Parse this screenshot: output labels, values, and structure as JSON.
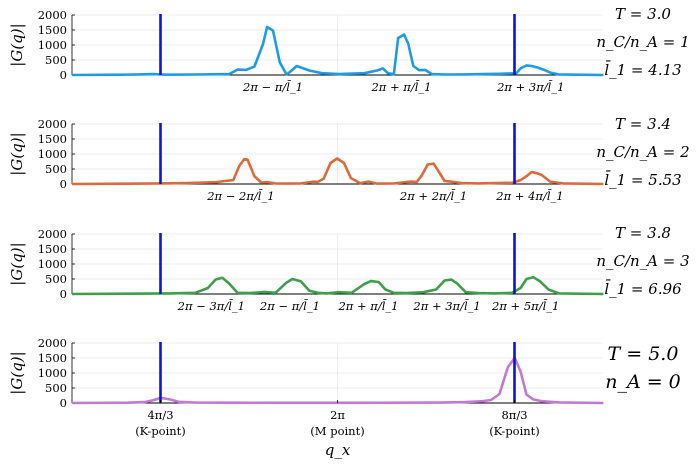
{
  "chart_data": {
    "type": "line",
    "x_axis": {
      "xlabel": "q_x",
      "tick_labels": [
        {
          "x": 4.18879,
          "line1": "4π/3",
          "line2": "(K-point)"
        },
        {
          "x": 6.28319,
          "line1": "2π",
          "line2": "(M point)"
        },
        {
          "x": 8.37758,
          "line1": "8π/3",
          "line2": "(K-point)"
        }
      ]
    },
    "k_points": [
      4.18879,
      8.37758
    ],
    "panels": [
      {
        "ylabel": "|G(q)|",
        "yticks": [
          "0",
          "500",
          "1000",
          "1500",
          "2000"
        ],
        "ylim": [
          0,
          2000
        ],
        "xlim": [
          3.14159,
          9.42478
        ],
        "color": "#1f9be6",
        "side_labels": [
          "T = 3.0",
          "n_C/n_A = 1",
          "l̄_1 = 4.13"
        ],
        "annotations": [
          {
            "x": 5.52,
            "text": "2π − π/l̄_1"
          },
          {
            "x": 7.04,
            "text": "2π + π/l̄_1"
          },
          {
            "x": 8.57,
            "text": "2π + 3π/l̄_1"
          }
        ],
        "series": [
          {
            "x": [
              3.14,
              3.75,
              3.95,
              4.1,
              4.25,
              4.6,
              5.0,
              5.1,
              5.2,
              5.3,
              5.4,
              5.45,
              5.52,
              5.6,
              5.68,
              5.72,
              5.8,
              5.95,
              6.1,
              6.3,
              6.6,
              6.75,
              6.82,
              6.88,
              6.95,
              7.0,
              7.07,
              7.12,
              7.18,
              7.25,
              7.32,
              7.4,
              7.55,
              7.8,
              8.0,
              8.2,
              8.4,
              8.45,
              8.52,
              8.58,
              8.65,
              8.72,
              8.8,
              8.9,
              9.1,
              9.43
            ],
            "y": [
              0,
              10,
              20,
              30,
              10,
              15,
              30,
              180,
              170,
              280,
              1020,
              1600,
              1480,
              420,
              20,
              100,
              300,
              150,
              60,
              30,
              60,
              150,
              220,
              60,
              30,
              1230,
              1350,
              1050,
              300,
              160,
              170,
              30,
              15,
              20,
              30,
              40,
              60,
              220,
              320,
              300,
              250,
              180,
              80,
              20,
              10,
              0
            ]
          }
        ]
      },
      {
        "ylabel": "|G(q)|",
        "yticks": [
          "0",
          "500",
          "1000",
          "1500",
          "2000"
        ],
        "ylim": [
          0,
          2000
        ],
        "xlim": [
          3.14159,
          9.42478
        ],
        "color": "#dd6a3a",
        "side_labels": [
          "T = 3.4",
          "n_C/n_A = 2",
          "l̄_1 = 5.53"
        ],
        "annotations": [
          {
            "x": 5.14,
            "text": "2π − 2π/l̄_1"
          },
          {
            "x": 7.42,
            "text": "2π + 2π/l̄_1"
          },
          {
            "x": 8.56,
            "text": "2π + 4π/l̄_1"
          }
        ],
        "series": [
          {
            "x": [
              3.14,
              3.8,
              4.2,
              4.5,
              4.85,
              4.95,
              5.05,
              5.12,
              5.18,
              5.22,
              5.3,
              5.38,
              5.45,
              5.55,
              5.7,
              5.85,
              6.0,
              6.05,
              6.12,
              6.2,
              6.28,
              6.36,
              6.44,
              6.55,
              6.65,
              6.75,
              6.95,
              7.05,
              7.15,
              7.22,
              7.28,
              7.35,
              7.42,
              7.48,
              7.55,
              7.62,
              7.75,
              7.95,
              8.15,
              8.35,
              8.45,
              8.52,
              8.58,
              8.64,
              8.7,
              8.8,
              8.95,
              9.43
            ],
            "y": [
              0,
              10,
              20,
              30,
              60,
              100,
              130,
              600,
              830,
              810,
              260,
              50,
              60,
              20,
              15,
              20,
              80,
              70,
              180,
              700,
              850,
              700,
              200,
              30,
              80,
              15,
              20,
              50,
              80,
              70,
              280,
              650,
              680,
              420,
              100,
              80,
              30,
              20,
              30,
              40,
              130,
              260,
              400,
              360,
              300,
              80,
              20,
              0
            ]
          }
        ]
      },
      {
        "ylabel": "|G(q)|",
        "yticks": [
          "0",
          "500",
          "1000",
          "1500",
          "2000"
        ],
        "ylim": [
          0,
          2000
        ],
        "xlim": [
          3.14159,
          9.42478
        ],
        "color": "#3d9f4a",
        "side_labels": [
          "T = 3.8",
          "n_C/n_A = 3",
          "l̄_1 = 6.96"
        ],
        "annotations": [
          {
            "x": 4.79,
            "text": "2π − 3π/l̄_1"
          },
          {
            "x": 5.72,
            "text": "2π − π/l̄_1"
          },
          {
            "x": 6.65,
            "text": "2π + π/l̄_1"
          },
          {
            "x": 7.58,
            "text": "2π + 3π/l̄_1"
          },
          {
            "x": 8.51,
            "text": "2π + 5π/l̄_1"
          }
        ],
        "series": [
          {
            "x": [
              3.14,
              3.8,
              4.3,
              4.6,
              4.75,
              4.84,
              4.92,
              5.0,
              5.1,
              5.25,
              5.42,
              5.55,
              5.68,
              5.75,
              5.85,
              5.95,
              6.05,
              6.15,
              6.3,
              6.45,
              6.6,
              6.68,
              6.77,
              6.85,
              6.95,
              7.1,
              7.3,
              7.45,
              7.55,
              7.63,
              7.7,
              7.8,
              7.95,
              8.15,
              8.35,
              8.45,
              8.52,
              8.6,
              8.68,
              8.78,
              8.9,
              9.43
            ],
            "y": [
              0,
              10,
              20,
              40,
              200,
              480,
              540,
              350,
              40,
              30,
              70,
              40,
              380,
              500,
              420,
              110,
              40,
              20,
              60,
              40,
              330,
              430,
              400,
              150,
              40,
              30,
              60,
              150,
              450,
              480,
              350,
              60,
              30,
              20,
              40,
              200,
              500,
              560,
              420,
              150,
              20,
              0
            ]
          }
        ]
      },
      {
        "ylabel": "|G(q)|",
        "yticks": [
          "0",
          "500",
          "1000",
          "1500",
          "2000"
        ],
        "ylim": [
          0,
          2000
        ],
        "xlim": [
          3.14159,
          9.42478
        ],
        "color": "#c279d5",
        "side_labels": [
          "T = 5.0",
          "n_A = 0"
        ],
        "annotations": [],
        "series": [
          {
            "x": [
              3.14,
              3.8,
              4.0,
              4.1,
              4.19,
              4.3,
              4.4,
              4.6,
              5.0,
              5.5,
              6.0,
              6.5,
              7.0,
              7.5,
              7.8,
              8.0,
              8.1,
              8.2,
              8.3,
              8.38,
              8.45,
              8.52,
              8.6,
              8.7,
              8.9,
              9.43
            ],
            "y": [
              0,
              10,
              30,
              90,
              170,
              120,
              40,
              15,
              10,
              8,
              6,
              8,
              10,
              15,
              30,
              60,
              100,
              300,
              1200,
              1500,
              1050,
              280,
              120,
              60,
              20,
              0
            ]
          }
        ]
      }
    ]
  }
}
